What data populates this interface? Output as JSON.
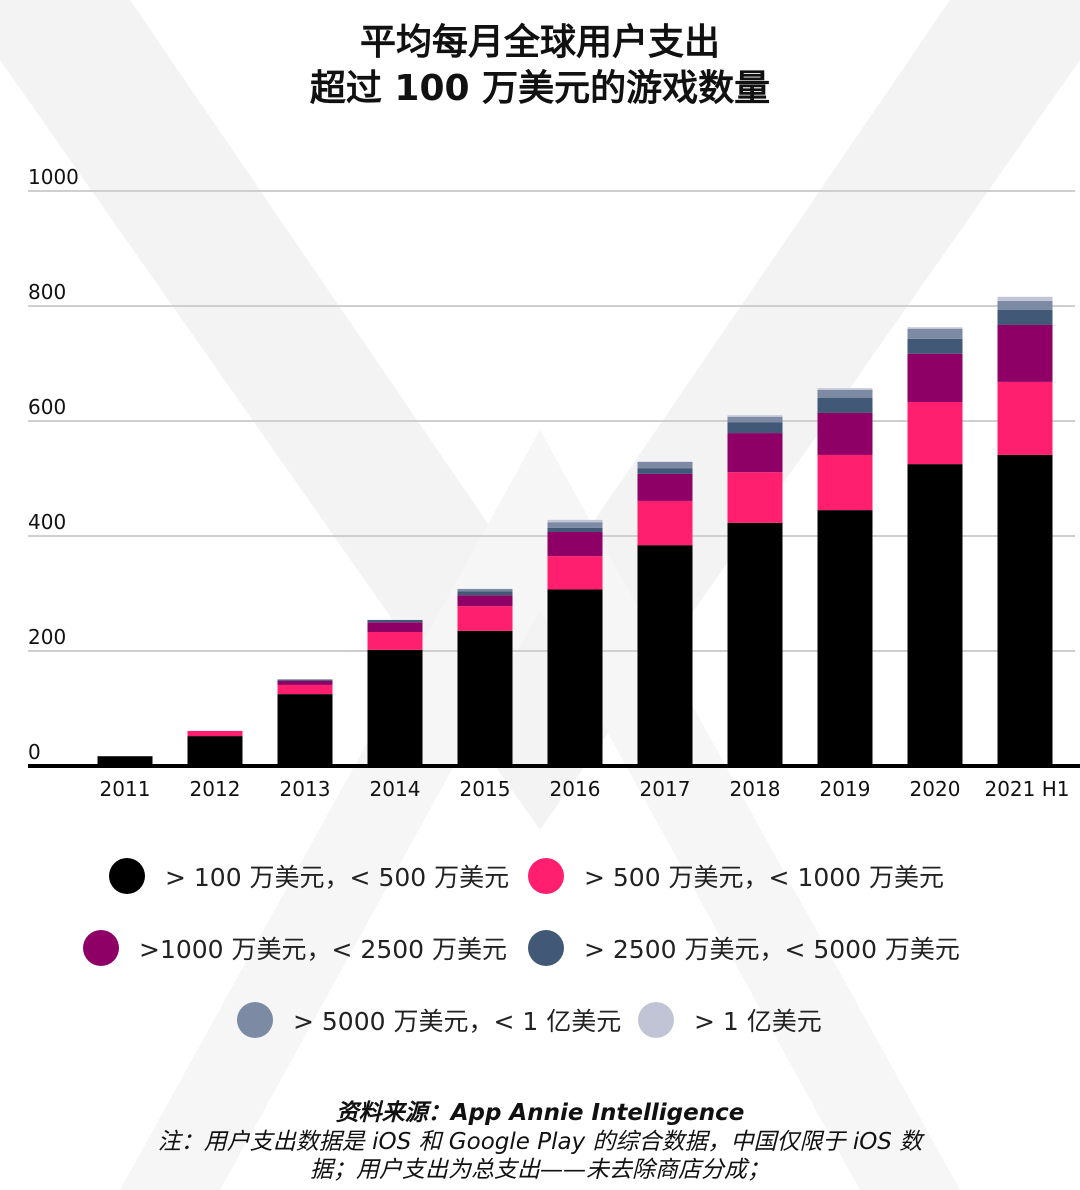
{
  "title": {
    "line1": "平均每月全球用户支出",
    "line2": "超过 100 万美元的游戏数量"
  },
  "colors": {
    "seg0": "#000000",
    "seg1": "#ff1f6e",
    "seg2": "#8e0066",
    "seg3": "#425877",
    "seg4": "#7d8aa4",
    "seg5": "#c0c4d4"
  },
  "legend": [
    {
      "label": "> 100 万美元，< 500 万美元"
    },
    {
      "label": "> 500 万美元，< 1000 万美元"
    },
    {
      "label": ">1000 万美元，< 2500 万美元"
    },
    {
      "label": "> 2500 万美元，< 5000 万美元"
    },
    {
      "label": "> 5000 万美元，< 1 亿美元"
    },
    {
      "label": "> 1 亿美元"
    }
  ],
  "footer": {
    "source_label": "资料来源：",
    "source": "App Annie Intelligence",
    "note_line1": "注：用户支出数据是 iOS 和 Google Play 的综合数据，中国仅限于 iOS 数",
    "note_line2": "据；用户支出为总支出——未去除商店分成；"
  },
  "chart_data": {
    "type": "bar",
    "stacked": true,
    "title": "平均每月全球用户支出超过 100 万美元的游戏数量",
    "xlabel": "",
    "ylabel": "",
    "ylim": [
      0,
      1000
    ],
    "yticks": [
      "0",
      "200",
      "400",
      "600",
      "800",
      "1000"
    ],
    "grid": true,
    "legend_position": "bottom",
    "categories": [
      "2011",
      "2012",
      "2013",
      "2014",
      "2015",
      "2016",
      "2017",
      "2018",
      "2019",
      "2020",
      "2021 H1"
    ],
    "series": [
      {
        "name": "> 100 万美元，< 500 万美元",
        "values": [
          17,
          52,
          125,
          202,
          235,
          307,
          384,
          423,
          445,
          525,
          541
        ]
      },
      {
        "name": "> 500 万美元，< 1000 万美元",
        "values": [
          0,
          9,
          16,
          31,
          43,
          58,
          77,
          88,
          96,
          108,
          127
        ]
      },
      {
        "name": ">1000 万美元，< 2500 万美元",
        "values": [
          0,
          0,
          7,
          17,
          19,
          42,
          47,
          68,
          73,
          84,
          99
        ]
      },
      {
        "name": "> 2500 万美元，< 5000 万美元",
        "values": [
          0,
          0,
          2,
          4,
          7,
          7,
          10,
          19,
          26,
          26,
          26
        ]
      },
      {
        "name": "> 5000 万美元，< 1 亿美元",
        "values": [
          0,
          0,
          1,
          0,
          4,
          10,
          11,
          9,
          14,
          17,
          16
        ]
      },
      {
        "name": "> 1 亿美元",
        "values": [
          0,
          0,
          0,
          0,
          0,
          4,
          0,
          3,
          3,
          3,
          7
        ]
      }
    ]
  }
}
